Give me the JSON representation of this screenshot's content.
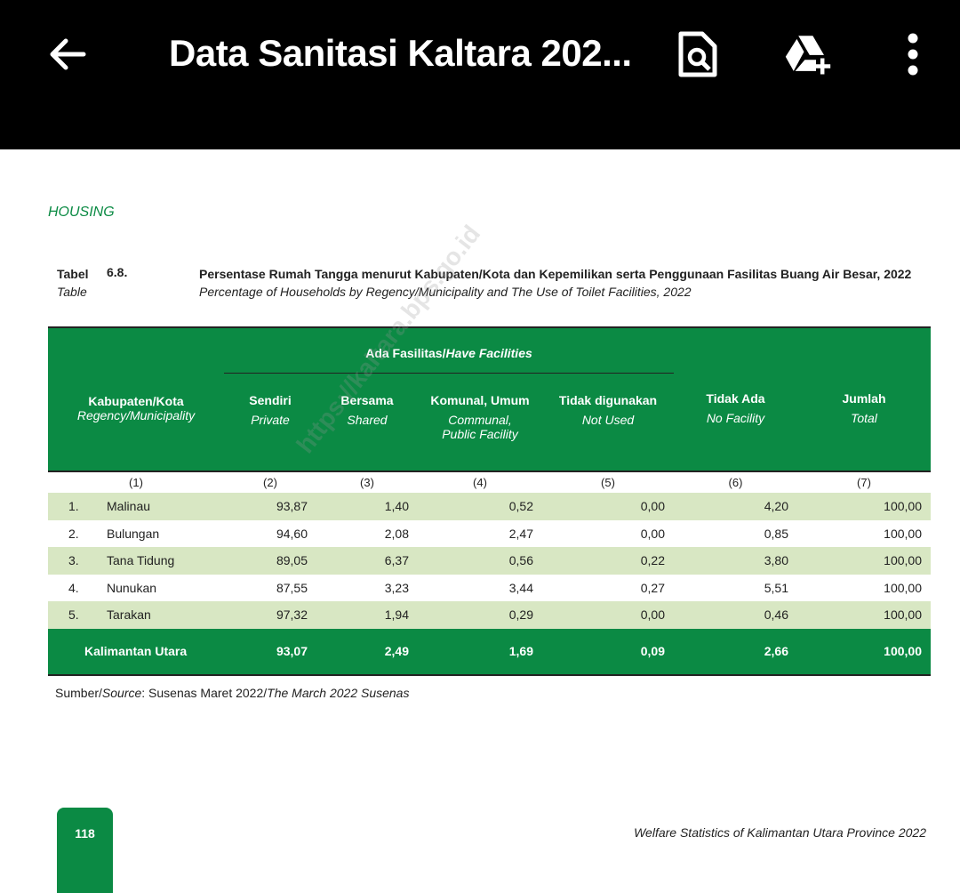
{
  "app_bar": {
    "title": "Data Sanitasi Kaltara 202...",
    "icons": [
      "back-arrow-icon",
      "find-in-document-icon",
      "add-to-drive-icon",
      "more-vert-icon"
    ]
  },
  "document": {
    "section": "HOUSING",
    "caption": {
      "label_id": "Tabel",
      "label_en": "Table",
      "number": "6.8.",
      "title_id": "Persentase Rumah Tangga menurut Kabupaten/Kota dan Kepemilikan serta Penggunaan Fasilitas Buang Air Besar, 2022",
      "title_en": "Percentage of Households by Regency/Municipality and The Use of Toilet Facilities, 2022"
    },
    "table": {
      "group_header": {
        "id": "Ada Fasilitas/",
        "en": "Have Facilities"
      },
      "columns": [
        {
          "id": "Kabupaten/Kota",
          "en": "Regency/Municipality",
          "num": "(1)"
        },
        {
          "id": "Sendiri",
          "en": "Private",
          "num": "(2)"
        },
        {
          "id": "Bersama",
          "en": "Shared",
          "num": "(3)"
        },
        {
          "id": "Komunal, Umum",
          "en": "Communal,",
          "en2": "Public Facility",
          "num": "(4)"
        },
        {
          "id": "Tidak digunakan",
          "en": "Not Used",
          "num": "(5)"
        },
        {
          "id": "Tidak Ada",
          "en": "No Facility",
          "num": "(6)"
        },
        {
          "id": "Jumlah",
          "en": "Total",
          "num": "(7)"
        }
      ],
      "rows": [
        {
          "no": "1.",
          "name": "Malinau",
          "values": [
            "93,87",
            "1,40",
            "0,52",
            "0,00",
            "4,20",
            "100,00"
          ]
        },
        {
          "no": "2.",
          "name": "Bulungan",
          "values": [
            "94,60",
            "2,08",
            "2,47",
            "0,00",
            "0,85",
            "100,00"
          ]
        },
        {
          "no": "3.",
          "name": "Tana Tidung",
          "values": [
            "89,05",
            "6,37",
            "0,56",
            "0,22",
            "3,80",
            "100,00"
          ]
        },
        {
          "no": "4.",
          "name": "Nunukan",
          "values": [
            "87,55",
            "3,23",
            "3,44",
            "0,27",
            "5,51",
            "100,00"
          ]
        },
        {
          "no": "5.",
          "name": "Tarakan",
          "values": [
            "97,32",
            "1,94",
            "0,29",
            "0,00",
            "0,46",
            "100,00"
          ]
        }
      ],
      "total": {
        "name": "Kalimantan Utara",
        "values": [
          "93,07",
          "2,49",
          "1,69",
          "0,09",
          "2,66",
          "100,00"
        ]
      }
    },
    "source": {
      "a": "Sumber/",
      "b": "Source",
      "c": ": Susenas Maret 2022/",
      "d": "The March 2022 Susenas"
    },
    "page_number": "118",
    "footer": "Welfare Statistics of Kalimantan Utara Province 2022",
    "watermark": "https://kaltara.bps.go.id"
  },
  "colors": {
    "green": "#0b8a44",
    "row_alt": "#d8e7c3",
    "app_bar": "#000000"
  }
}
